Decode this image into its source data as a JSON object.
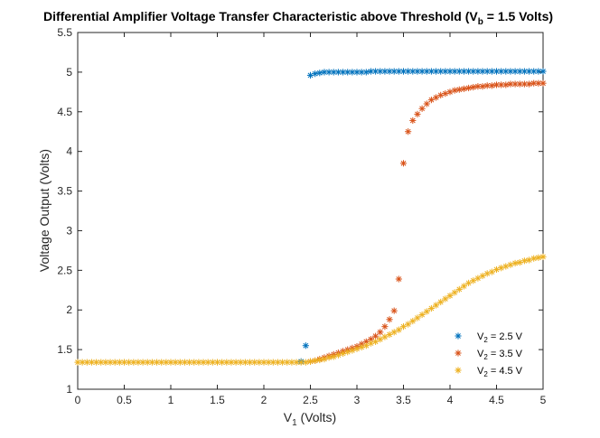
{
  "chart_data": {
    "type": "scatter",
    "title": {
      "main": "Differential Amplifier Voltage Transfer Characteristic above Threshold (V",
      "sub": "b",
      "rest": " = 1.5 Volts)"
    },
    "xlabel": {
      "main": "V",
      "sub": "1",
      "rest": " (Volts)"
    },
    "ylabel": "Voltage Output (Volts)",
    "xlim": [
      0,
      5
    ],
    "ylim": [
      1,
      5.5
    ],
    "xticks": [
      "0",
      "0.5",
      "1",
      "1.5",
      "2",
      "2.5",
      "3",
      "3.5",
      "4",
      "4.5",
      "5"
    ],
    "yticks": [
      "1",
      "1.5",
      "2",
      "2.5",
      "3",
      "3.5",
      "4",
      "4.5",
      "5",
      "5.5"
    ],
    "xtick_values": [
      0,
      0.5,
      1,
      1.5,
      2,
      2.5,
      3,
      3.5,
      4,
      4.5,
      5
    ],
    "ytick_values": [
      1,
      1.5,
      2,
      2.5,
      3,
      3.5,
      4,
      4.5,
      5,
      5.5
    ],
    "grid": false,
    "legend_location": "bottom-right",
    "marker": "asterisk",
    "series": [
      {
        "name": {
          "main": "V",
          "sub": "2",
          "rest": " = 2.5 V"
        },
        "color": "#0072BD",
        "points": [
          [
            2.4,
            1.35
          ],
          [
            2.45,
            1.55
          ],
          [
            2.5,
            4.96
          ],
          [
            2.55,
            4.98
          ],
          [
            2.6,
            4.99
          ],
          [
            2.65,
            5.0
          ],
          [
            2.7,
            5.0
          ],
          [
            2.75,
            5.0
          ],
          [
            2.8,
            5.0
          ],
          [
            2.85,
            5.0
          ],
          [
            2.9,
            5.0
          ],
          [
            2.95,
            5.0
          ],
          [
            3.0,
            5.0
          ],
          [
            3.05,
            5.0
          ],
          [
            3.1,
            5.0
          ],
          [
            3.15,
            5.01
          ],
          [
            3.2,
            5.01
          ],
          [
            3.25,
            5.01
          ],
          [
            3.3,
            5.01
          ],
          [
            3.35,
            5.01
          ],
          [
            3.4,
            5.01
          ],
          [
            3.45,
            5.01
          ],
          [
            3.5,
            5.01
          ],
          [
            3.55,
            5.01
          ],
          [
            3.6,
            5.01
          ],
          [
            3.65,
            5.01
          ],
          [
            3.7,
            5.01
          ],
          [
            3.75,
            5.01
          ],
          [
            3.8,
            5.01
          ],
          [
            3.85,
            5.01
          ],
          [
            3.9,
            5.01
          ],
          [
            3.95,
            5.01
          ],
          [
            4.0,
            5.01
          ],
          [
            4.05,
            5.01
          ],
          [
            4.1,
            5.01
          ],
          [
            4.15,
            5.01
          ],
          [
            4.2,
            5.01
          ],
          [
            4.25,
            5.01
          ],
          [
            4.3,
            5.01
          ],
          [
            4.35,
            5.01
          ],
          [
            4.4,
            5.01
          ],
          [
            4.45,
            5.01
          ],
          [
            4.5,
            5.01
          ],
          [
            4.55,
            5.01
          ],
          [
            4.6,
            5.01
          ],
          [
            4.65,
            5.01
          ],
          [
            4.7,
            5.01
          ],
          [
            4.75,
            5.01
          ],
          [
            4.8,
            5.01
          ],
          [
            4.85,
            5.01
          ],
          [
            4.9,
            5.01
          ],
          [
            4.95,
            5.01
          ],
          [
            5.0,
            5.01
          ]
        ]
      },
      {
        "name": {
          "main": "V",
          "sub": "2",
          "rest": " = 3.5 V"
        },
        "color": "#D95319",
        "points": [
          [
            2.5,
            1.35
          ],
          [
            2.55,
            1.36
          ],
          [
            2.6,
            1.38
          ],
          [
            2.65,
            1.4
          ],
          [
            2.7,
            1.42
          ],
          [
            2.75,
            1.44
          ],
          [
            2.8,
            1.46
          ],
          [
            2.85,
            1.48
          ],
          [
            2.9,
            1.5
          ],
          [
            2.95,
            1.52
          ],
          [
            3.0,
            1.54
          ],
          [
            3.05,
            1.57
          ],
          [
            3.1,
            1.6
          ],
          [
            3.15,
            1.63
          ],
          [
            3.2,
            1.67
          ],
          [
            3.25,
            1.72
          ],
          [
            3.3,
            1.79
          ],
          [
            3.35,
            1.88
          ],
          [
            3.4,
            1.99
          ],
          [
            3.45,
            2.39
          ],
          [
            3.5,
            3.85
          ],
          [
            3.55,
            4.25
          ],
          [
            3.6,
            4.39
          ],
          [
            3.65,
            4.47
          ],
          [
            3.7,
            4.54
          ],
          [
            3.75,
            4.6
          ],
          [
            3.8,
            4.65
          ],
          [
            3.85,
            4.68
          ],
          [
            3.9,
            4.71
          ],
          [
            3.95,
            4.73
          ],
          [
            4.0,
            4.75
          ],
          [
            4.05,
            4.77
          ],
          [
            4.1,
            4.78
          ],
          [
            4.15,
            4.79
          ],
          [
            4.2,
            4.8
          ],
          [
            4.25,
            4.81
          ],
          [
            4.3,
            4.82
          ],
          [
            4.35,
            4.82
          ],
          [
            4.4,
            4.83
          ],
          [
            4.45,
            4.83
          ],
          [
            4.5,
            4.84
          ],
          [
            4.55,
            4.84
          ],
          [
            4.6,
            4.84
          ],
          [
            4.65,
            4.85
          ],
          [
            4.7,
            4.85
          ],
          [
            4.75,
            4.85
          ],
          [
            4.8,
            4.85
          ],
          [
            4.85,
            4.85
          ],
          [
            4.9,
            4.86
          ],
          [
            4.95,
            4.86
          ],
          [
            5.0,
            4.86
          ]
        ]
      },
      {
        "name": {
          "main": "V",
          "sub": "2",
          "rest": " = 4.5 V"
        },
        "color": "#EDB120",
        "points": [
          [
            0.0,
            1.34
          ],
          [
            0.05,
            1.34
          ],
          [
            0.1,
            1.34
          ],
          [
            0.15,
            1.34
          ],
          [
            0.2,
            1.34
          ],
          [
            0.25,
            1.34
          ],
          [
            0.3,
            1.34
          ],
          [
            0.35,
            1.34
          ],
          [
            0.4,
            1.34
          ],
          [
            0.45,
            1.34
          ],
          [
            0.5,
            1.34
          ],
          [
            0.55,
            1.34
          ],
          [
            0.6,
            1.34
          ],
          [
            0.65,
            1.34
          ],
          [
            0.7,
            1.34
          ],
          [
            0.75,
            1.34
          ],
          [
            0.8,
            1.34
          ],
          [
            0.85,
            1.34
          ],
          [
            0.9,
            1.34
          ],
          [
            0.95,
            1.34
          ],
          [
            1.0,
            1.34
          ],
          [
            1.05,
            1.34
          ],
          [
            1.1,
            1.34
          ],
          [
            1.15,
            1.34
          ],
          [
            1.2,
            1.34
          ],
          [
            1.25,
            1.34
          ],
          [
            1.3,
            1.34
          ],
          [
            1.35,
            1.34
          ],
          [
            1.4,
            1.34
          ],
          [
            1.45,
            1.34
          ],
          [
            1.5,
            1.34
          ],
          [
            1.55,
            1.34
          ],
          [
            1.6,
            1.34
          ],
          [
            1.65,
            1.34
          ],
          [
            1.7,
            1.34
          ],
          [
            1.75,
            1.34
          ],
          [
            1.8,
            1.34
          ],
          [
            1.85,
            1.34
          ],
          [
            1.9,
            1.34
          ],
          [
            1.95,
            1.34
          ],
          [
            2.0,
            1.34
          ],
          [
            2.05,
            1.34
          ],
          [
            2.1,
            1.34
          ],
          [
            2.15,
            1.34
          ],
          [
            2.2,
            1.34
          ],
          [
            2.25,
            1.34
          ],
          [
            2.3,
            1.34
          ],
          [
            2.35,
            1.34
          ],
          [
            2.4,
            1.34
          ],
          [
            2.45,
            1.34
          ],
          [
            2.5,
            1.35
          ],
          [
            2.55,
            1.36
          ],
          [
            2.6,
            1.37
          ],
          [
            2.65,
            1.38
          ],
          [
            2.7,
            1.4
          ],
          [
            2.75,
            1.41
          ],
          [
            2.8,
            1.43
          ],
          [
            2.85,
            1.45
          ],
          [
            2.9,
            1.47
          ],
          [
            2.95,
            1.49
          ],
          [
            3.0,
            1.51
          ],
          [
            3.05,
            1.53
          ],
          [
            3.1,
            1.55
          ],
          [
            3.15,
            1.58
          ],
          [
            3.2,
            1.6
          ],
          [
            3.25,
            1.63
          ],
          [
            3.3,
            1.66
          ],
          [
            3.35,
            1.69
          ],
          [
            3.4,
            1.72
          ],
          [
            3.45,
            1.75
          ],
          [
            3.5,
            1.79
          ],
          [
            3.55,
            1.82
          ],
          [
            3.6,
            1.86
          ],
          [
            3.65,
            1.9
          ],
          [
            3.7,
            1.94
          ],
          [
            3.75,
            1.98
          ],
          [
            3.8,
            2.02
          ],
          [
            3.85,
            2.06
          ],
          [
            3.9,
            2.1
          ],
          [
            3.95,
            2.14
          ],
          [
            4.0,
            2.18
          ],
          [
            4.05,
            2.22
          ],
          [
            4.1,
            2.26
          ],
          [
            4.15,
            2.3
          ],
          [
            4.2,
            2.34
          ],
          [
            4.25,
            2.37
          ],
          [
            4.3,
            2.4
          ],
          [
            4.35,
            2.43
          ],
          [
            4.4,
            2.46
          ],
          [
            4.45,
            2.48
          ],
          [
            4.5,
            2.51
          ],
          [
            4.55,
            2.53
          ],
          [
            4.6,
            2.55
          ],
          [
            4.65,
            2.57
          ],
          [
            4.7,
            2.59
          ],
          [
            4.75,
            2.6
          ],
          [
            4.8,
            2.62
          ],
          [
            4.85,
            2.63
          ],
          [
            4.9,
            2.65
          ],
          [
            4.95,
            2.66
          ],
          [
            5.0,
            2.67
          ]
        ]
      }
    ]
  }
}
